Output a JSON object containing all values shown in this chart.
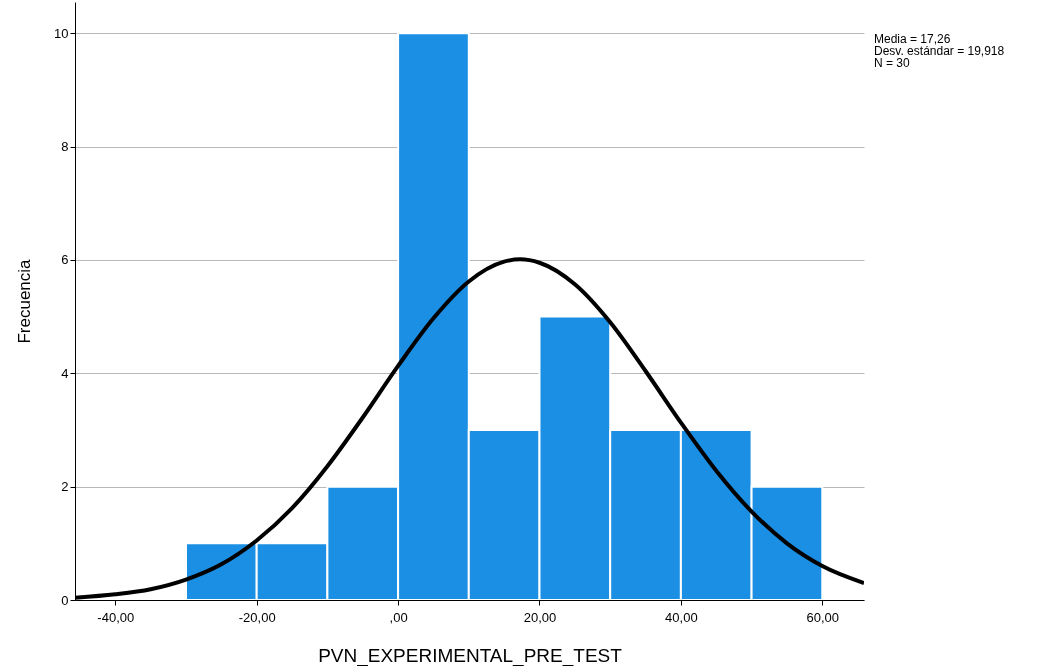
{
  "chart_data": {
    "type": "histogram",
    "xlabel": "PVN_EXPERIMENTAL_PRE_TEST",
    "ylabel": "Frecuencia",
    "bins": [
      -30,
      -20,
      -10,
      0,
      10,
      20,
      30,
      40,
      50,
      60
    ],
    "values": [
      1,
      1,
      2,
      10,
      3,
      5,
      3,
      3,
      2
    ],
    "color": "#1a8fe3",
    "series": [
      {
        "type": "line",
        "color": "#000000",
        "x": [
          -45.7,
          -40,
          -35,
          -30,
          -25,
          -20,
          -15,
          -10,
          -5,
          0,
          5,
          10,
          15,
          17.26,
          20,
          25,
          30,
          35,
          40,
          45,
          50,
          55,
          60,
          65.9
        ],
        "values": [
          0.04,
          0.1,
          0.19,
          0.36,
          0.63,
          1.05,
          1.62,
          2.36,
          3.22,
          4.13,
          4.97,
          5.62,
          5.97,
          6.01,
          5.95,
          5.57,
          4.9,
          4.04,
          3.13,
          2.28,
          1.56,
          1,
          0.6,
          0.3
        ]
      }
    ],
    "xlim": [
      -45.7,
      65.9
    ],
    "xticks": [
      {
        "value": -40,
        "label": "-40,00"
      },
      {
        "value": -20,
        "label": "-20,00"
      },
      {
        "value": 0,
        "label": ",00"
      },
      {
        "value": 20,
        "label": "20,00"
      },
      {
        "value": 40,
        "label": "40,00"
      },
      {
        "value": 60,
        "label": "60,00"
      }
    ],
    "ylim": [
      0,
      10.55
    ],
    "yticks": [
      0,
      2,
      4,
      6,
      8,
      10
    ],
    "grid": "y",
    "annotations": [
      "Media = 17,26",
      "Desv. estándar = 19,918",
      "N = 30"
    ]
  }
}
